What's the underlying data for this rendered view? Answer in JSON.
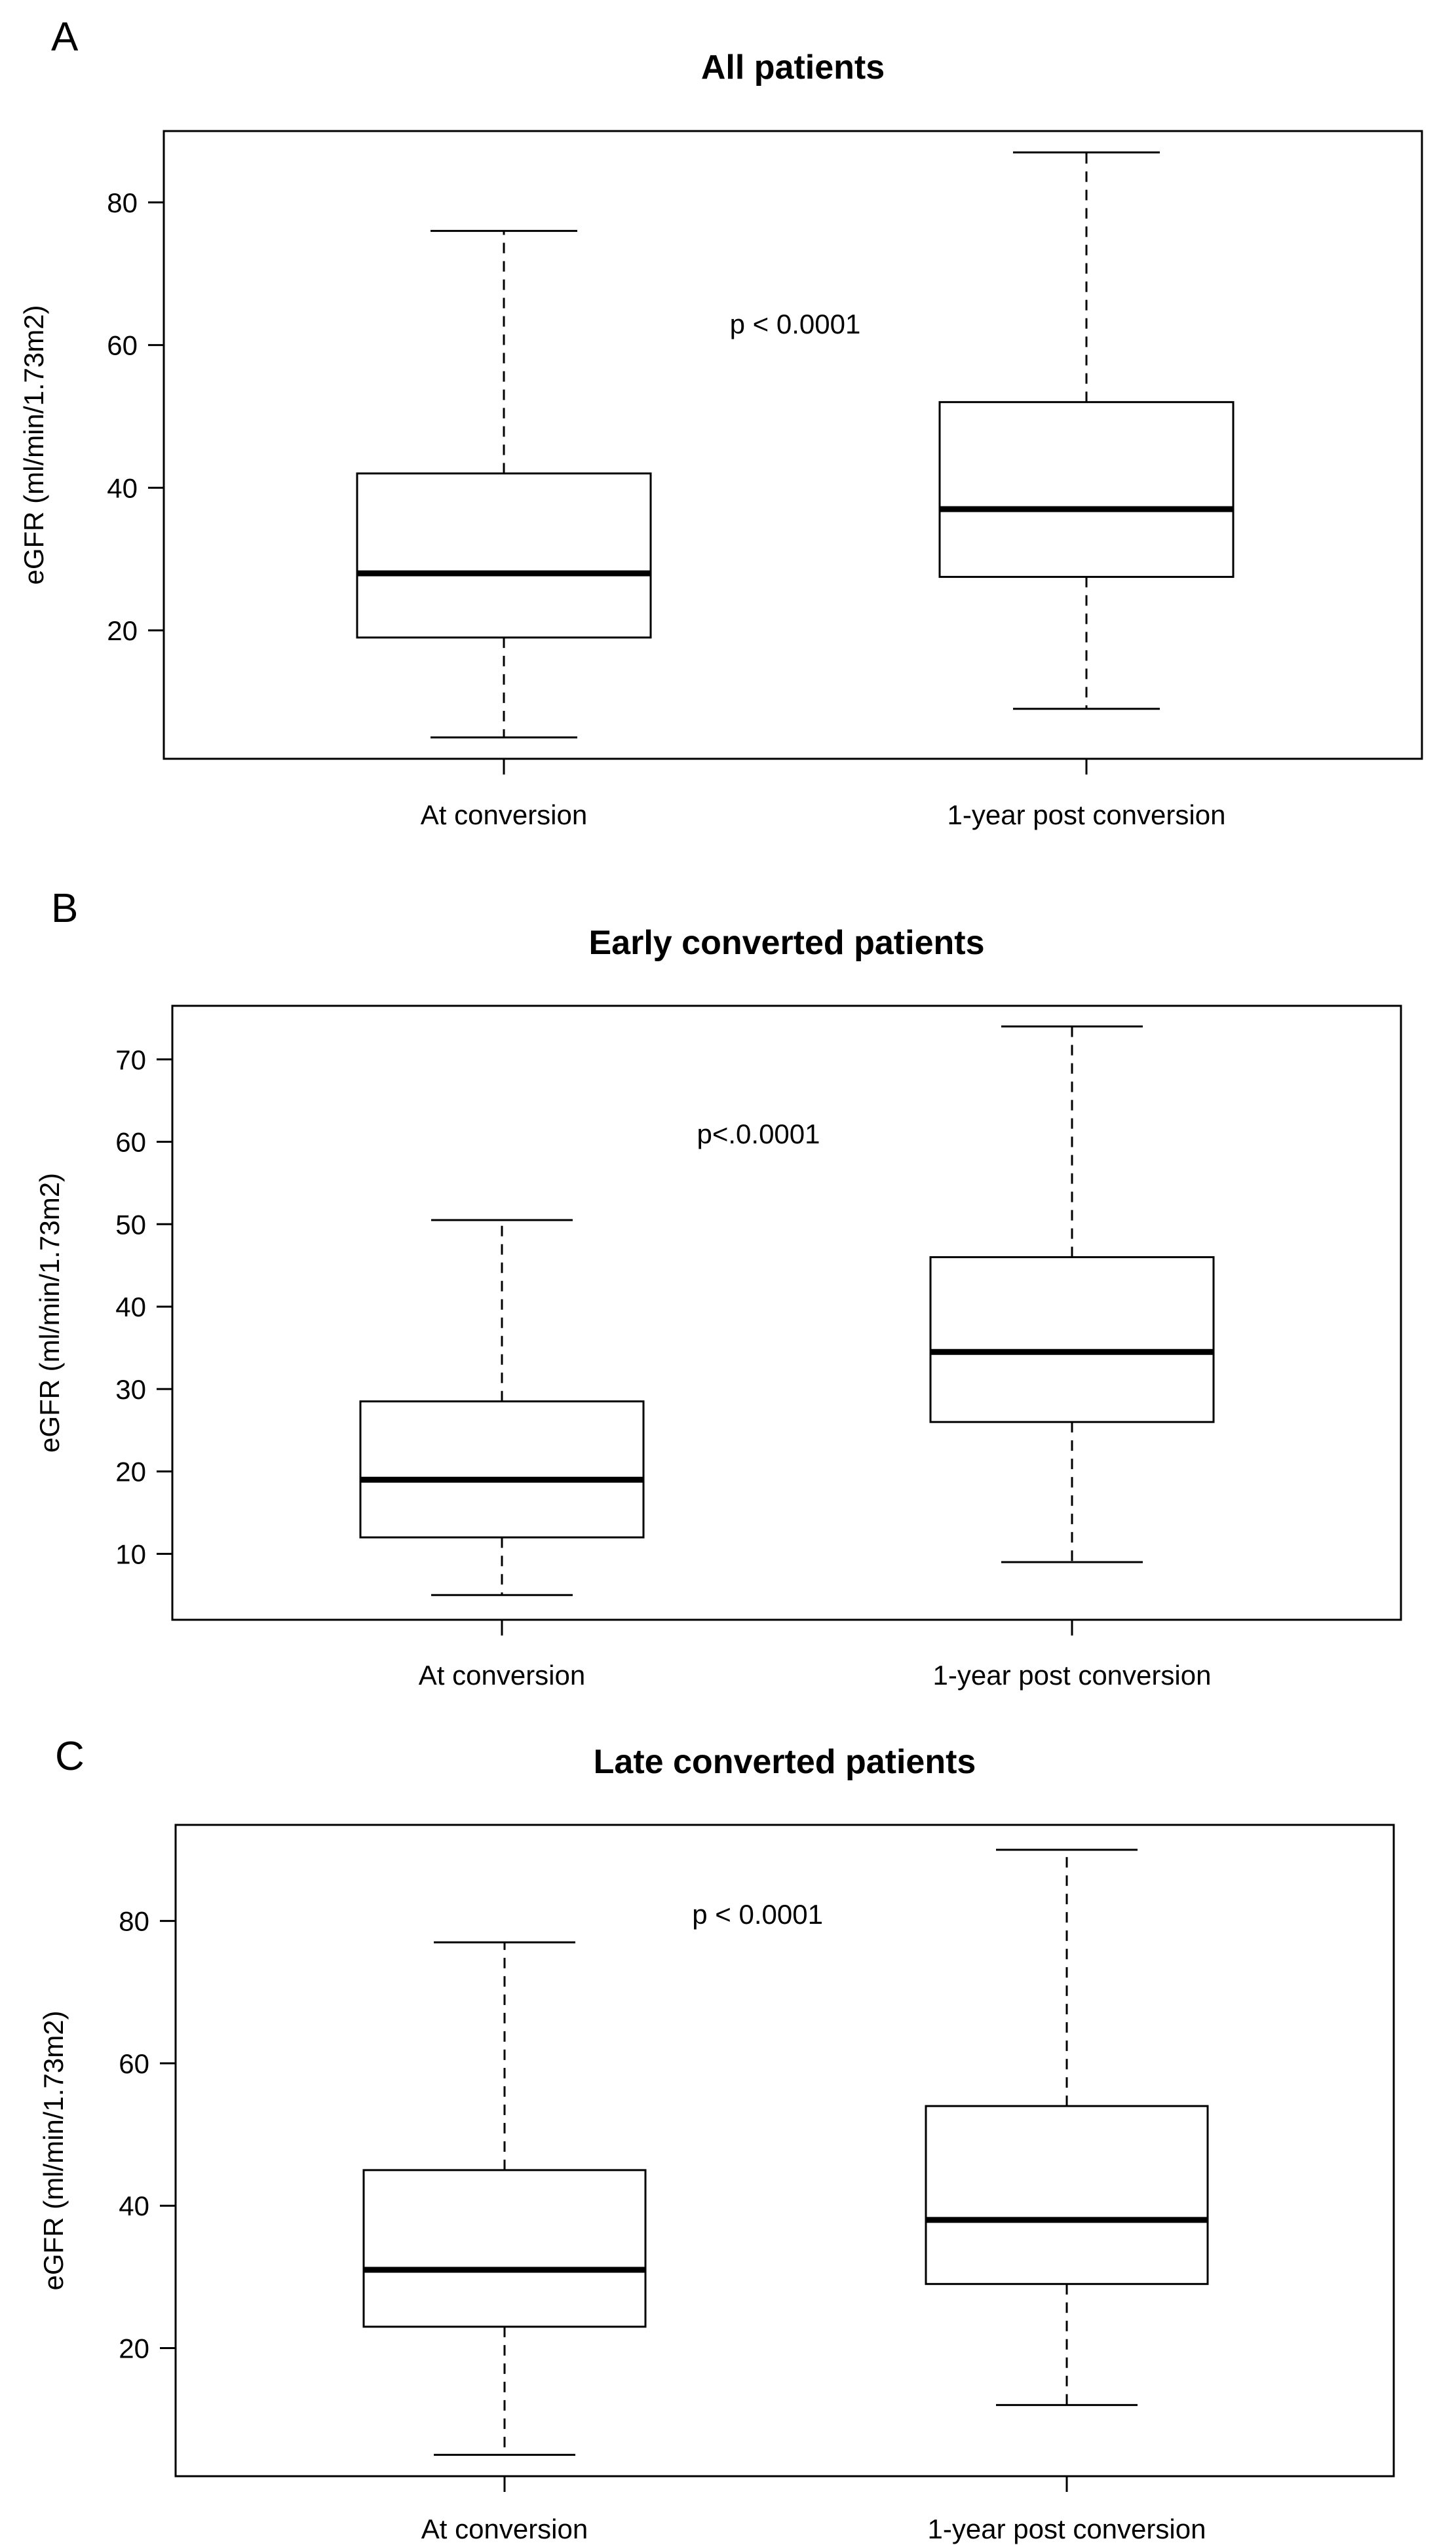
{
  "chart_data": [
    {
      "type": "box",
      "panel_label": "A",
      "title": "All patients",
      "xlabel": "",
      "ylabel": "eGFR (ml/min/1.73m2)",
      "categories": [
        "At conversion",
        "1-year post conversion"
      ],
      "yticks": [
        20,
        40,
        60,
        80
      ],
      "ylim": [
        2,
        90
      ],
      "boxes": [
        {
          "min": 5,
          "q1": 19,
          "median": 28,
          "q3": 42,
          "max": 76
        },
        {
          "min": 9,
          "q1": 27.5,
          "median": 37,
          "q3": 52,
          "max": 87
        }
      ],
      "annotation": "p < 0.0001",
      "annotation_pos": [
        1.5,
        63
      ]
    },
    {
      "type": "box",
      "panel_label": "B",
      "title": "Early converted patients",
      "xlabel": "",
      "ylabel": "eGFR (ml/min/1.73m2)",
      "categories": [
        "At conversion",
        "1-year post conversion"
      ],
      "yticks": [
        10,
        20,
        30,
        40,
        50,
        60,
        70
      ],
      "ylim": [
        2,
        76.5
      ],
      "boxes": [
        {
          "min": 5,
          "q1": 12,
          "median": 19,
          "q3": 28.5,
          "max": 50.5
        },
        {
          "min": 9,
          "q1": 26,
          "median": 34.5,
          "q3": 46,
          "max": 74
        }
      ],
      "annotation": "p<.0.0001",
      "annotation_pos": [
        1.45,
        61
      ]
    },
    {
      "type": "box",
      "panel_label": "C",
      "title": "Late converted patients",
      "xlabel": "",
      "ylabel": "eGFR (ml/min/1.73m2)",
      "categories": [
        "At conversion",
        "1-year post conversion"
      ],
      "yticks": [
        20,
        40,
        60,
        80
      ],
      "ylim": [
        2,
        93.5
      ],
      "boxes": [
        {
          "min": 5,
          "q1": 23,
          "median": 31,
          "q3": 45,
          "max": 77
        },
        {
          "min": 12,
          "q1": 29,
          "median": 38,
          "q3": 54,
          "max": 90
        }
      ],
      "annotation": "p < 0.0001",
      "annotation_pos": [
        1.45,
        81
      ]
    }
  ]
}
